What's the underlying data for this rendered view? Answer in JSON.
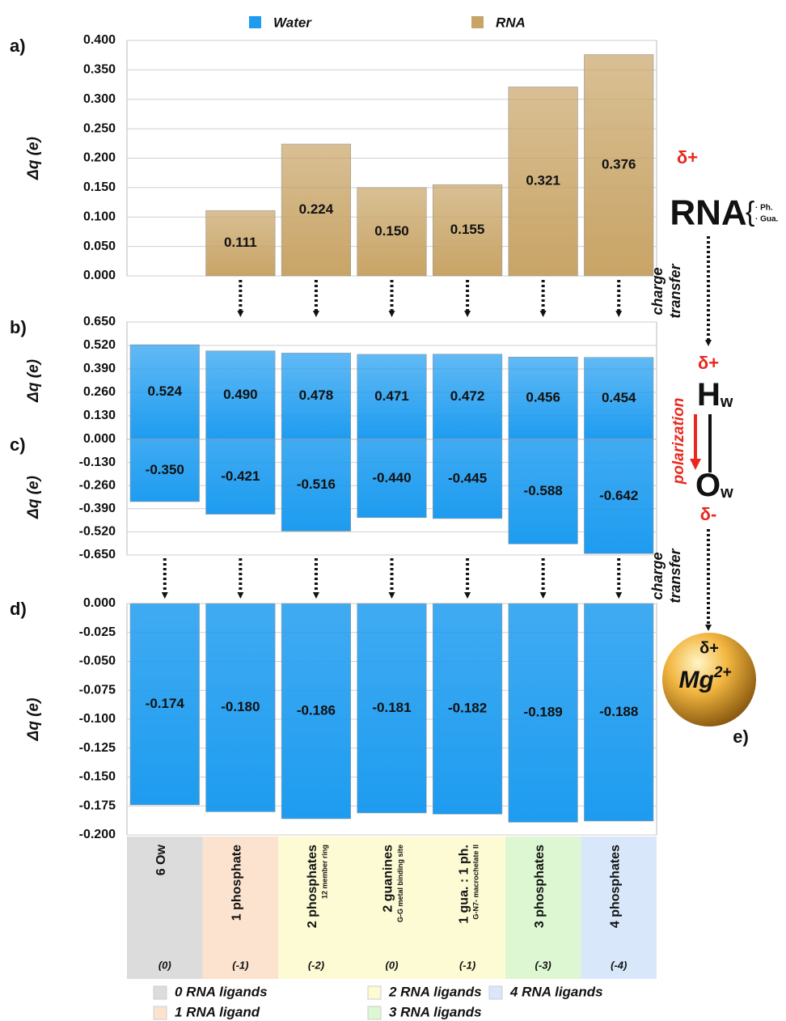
{
  "chart_data": [
    {
      "type": "bar",
      "panel_label": "a)",
      "y_label": "Δq (e)",
      "grid": true,
      "series": [
        {
          "name": "RNA",
          "color": "#c8a466",
          "values": [
            null,
            0.111,
            0.224,
            0.15,
            0.155,
            0.321,
            0.376
          ],
          "value_labels": [
            null,
            "0.111",
            "0.224",
            "0.150",
            "0.155",
            "0.321",
            "0.376"
          ]
        }
      ],
      "ylim": [
        0,
        0.4
      ],
      "yticks": [
        {
          "value": 0,
          "label": "0.000"
        },
        {
          "value": 0.05,
          "label": "0.050"
        },
        {
          "value": 0.1,
          "label": "0.100"
        },
        {
          "value": 0.15,
          "label": "0.150"
        },
        {
          "value": 0.2,
          "label": "0.200"
        },
        {
          "value": 0.25,
          "label": "0.250"
        },
        {
          "value": 0.3,
          "label": "0.300"
        },
        {
          "value": 0.35,
          "label": "0.350"
        },
        {
          "value": 0.4,
          "label": "0.400"
        }
      ]
    },
    {
      "type": "bar",
      "panel_label": "b)",
      "y_label": "Δq (e)",
      "grid": true,
      "series": [
        {
          "name": "Water",
          "color": "#1e9cf0",
          "values": [
            0.524,
            0.49,
            0.478,
            0.471,
            0.472,
            0.456,
            0.454
          ],
          "value_labels": [
            "0.524",
            "0.490",
            "0.478",
            "0.471",
            "0.472",
            "0.456",
            "0.454"
          ]
        }
      ],
      "ylim": [
        0,
        0.65
      ],
      "yticks": [
        {
          "value": 0,
          "label": "0.000"
        },
        {
          "value": 0.13,
          "label": "0.130"
        },
        {
          "value": 0.26,
          "label": "0.260"
        },
        {
          "value": 0.39,
          "label": "0.390"
        },
        {
          "value": 0.52,
          "label": "0.520"
        },
        {
          "value": 0.65,
          "label": "0.650"
        }
      ]
    },
    {
      "type": "bar",
      "panel_label": "c)",
      "y_label": "Δq (e)",
      "grid": true,
      "color": "#1e9cf0",
      "values": [
        -0.35,
        -0.421,
        -0.516,
        -0.44,
        -0.445,
        -0.588,
        -0.642
      ],
      "value_labels": [
        "-0.350",
        "-0.421",
        "-0.516",
        "-0.440",
        "-0.445",
        "-0.588",
        "-0.642"
      ],
      "ylim": [
        -0.65,
        0
      ],
      "yticks": [
        {
          "value": -0.13,
          "label": "-0.130"
        },
        {
          "value": -0.26,
          "label": "-0.260"
        },
        {
          "value": -0.39,
          "label": "-0.390"
        },
        {
          "value": -0.52,
          "label": "-0.520"
        },
        {
          "value": -0.65,
          "label": "-0.650"
        }
      ]
    },
    {
      "type": "bar",
      "panel_label": "d)",
      "y_label": "Δq (e)",
      "grid": true,
      "color": "#1e9cf0",
      "values": [
        -0.174,
        -0.18,
        -0.186,
        -0.181,
        -0.182,
        -0.189,
        -0.188
      ],
      "value_labels": [
        "-0.174",
        "-0.180",
        "-0.186",
        "-0.181",
        "-0.182",
        "-0.189",
        "-0.188"
      ],
      "ylim": [
        -0.2,
        0
      ],
      "yticks": [
        {
          "value": 0,
          "label": "0.000"
        },
        {
          "value": -0.025,
          "label": "-0.025"
        },
        {
          "value": -0.05,
          "label": "-0.050"
        },
        {
          "value": -0.075,
          "label": "-0.075"
        },
        {
          "value": -0.1,
          "label": "-0.100"
        },
        {
          "value": -0.125,
          "label": "-0.125"
        },
        {
          "value": -0.15,
          "label": "-0.150"
        },
        {
          "value": -0.175,
          "label": "-0.175"
        },
        {
          "value": -0.2,
          "label": "-0.200"
        }
      ],
      "categories": [
        "6 Ow",
        "1 phosphate",
        "2 phosphates",
        "2 guanines",
        "1 gua. : 1 ph.",
        "3 phosphates",
        "4 phosphates"
      ],
      "category_notes": [
        null,
        null,
        "12 member ring",
        "G-G metal binding site",
        "G-N7- macrochelate II",
        null,
        null
      ],
      "category_charges": [
        "(0)",
        "(-1)",
        "(-2)",
        "(0)",
        "(-1)",
        "(-3)",
        "(-4)"
      ],
      "category_colors": [
        "#dcdcdc",
        "#fbe3cf",
        "#fdfbd3",
        "#fdfbd3",
        "#fdfbd3",
        "#dcf7d2",
        "#d8e8fa"
      ]
    }
  ],
  "ligand_legend": [
    {
      "label": "0 RNA ligands",
      "color": "#dcdcdc"
    },
    {
      "label": "1 RNA ligand",
      "color": "#fbe3cf"
    },
    {
      "label": "2 RNA ligands",
      "color": "#fdfbd3"
    },
    {
      "label": "3 RNA ligands",
      "color": "#dcf7d2"
    },
    {
      "label": "4 RNA ligands",
      "color": "#d8e8fa"
    }
  ],
  "diagram": {
    "rna_charge": "δ+",
    "rna": "RNA",
    "rna_parts": [
      "· Ph.",
      "· Gua."
    ],
    "transfer_1": [
      "charge",
      "transfer"
    ],
    "h_charge": "δ+",
    "h": "H",
    "h_sub": "w",
    "polarization": "polarization",
    "o": "O",
    "o_sub": "w",
    "o_charge": "δ-",
    "transfer_2": [
      "charge",
      "transfer"
    ],
    "mg_charge": "δ+",
    "mg": "Mg",
    "mg_sup": "2+",
    "label": "e)"
  }
}
